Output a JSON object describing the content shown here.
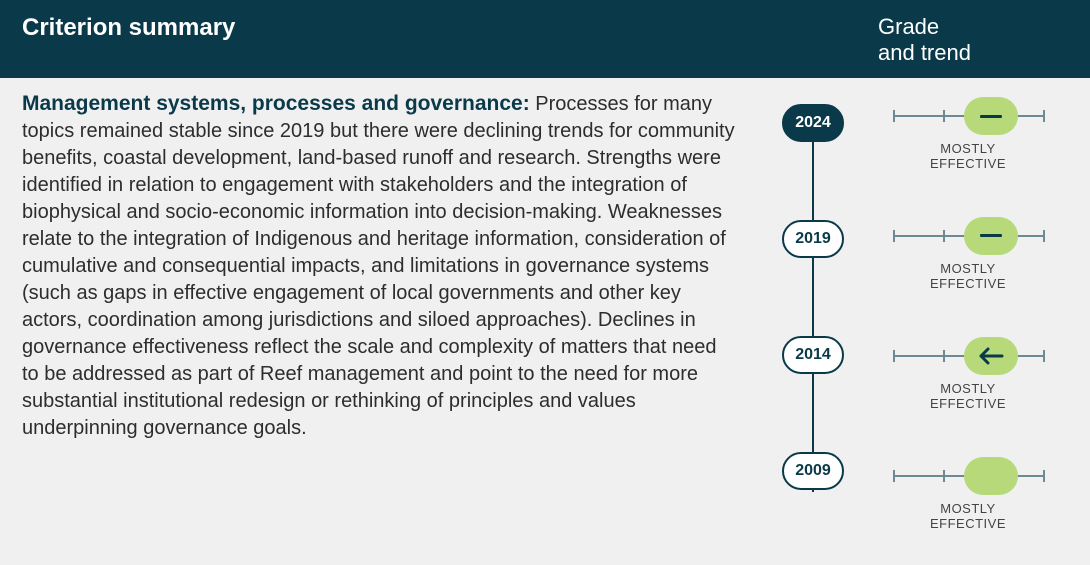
{
  "header": {
    "left": "Criterion summary",
    "right_line1": "Grade",
    "right_line2": "and trend"
  },
  "summary": {
    "title": "Management systems, processes and governance:",
    "body": "Processes for many topics remained stable since 2019 but there were declining trends for community benefits, coastal development, land-based runoff and research. Strengths were identified in relation to engagement with stakeholders and the integration of biophysical and socio-economic information into decision-making. Weaknesses relate to the integration of Indigenous and heritage information, consideration of cumulative and consequential impacts, and limitations in governance systems (such as gaps in effective engagement of local governments and other key actors, coordination among jurisdictions and siloed approaches). Declines in governance effectiveness reflect the scale and complexity of matters that need to be addressed as part of Reef management and point to the need for more substantial institutional redesign or rethinking of principles and values underpinning governance goals."
  },
  "colors": {
    "header_bg": "#0a3a4a",
    "pill_bg": "#b7d97a",
    "rail": "#6b8a94",
    "body_text": "#2d2d2d",
    "page_bg": "#f0f0f0",
    "white": "#ffffff"
  },
  "timeline": {
    "years": [
      {
        "year": "2024",
        "current": true
      },
      {
        "year": "2019",
        "current": false
      },
      {
        "year": "2014",
        "current": false
      },
      {
        "year": "2009",
        "current": false
      }
    ]
  },
  "grades": {
    "scale_ticks": 4,
    "items": [
      {
        "label_line1": "MOSTLY",
        "label_line2": "EFFECTIVE",
        "position_pct": 65,
        "trend": "stable"
      },
      {
        "label_line1": "MOSTLY",
        "label_line2": "EFFECTIVE",
        "position_pct": 65,
        "trend": "stable"
      },
      {
        "label_line1": "MOSTLY",
        "label_line2": "EFFECTIVE",
        "position_pct": 65,
        "trend": "declining"
      },
      {
        "label_line1": "MOSTLY",
        "label_line2": "EFFECTIVE",
        "position_pct": 65,
        "trend": "none"
      }
    ]
  }
}
